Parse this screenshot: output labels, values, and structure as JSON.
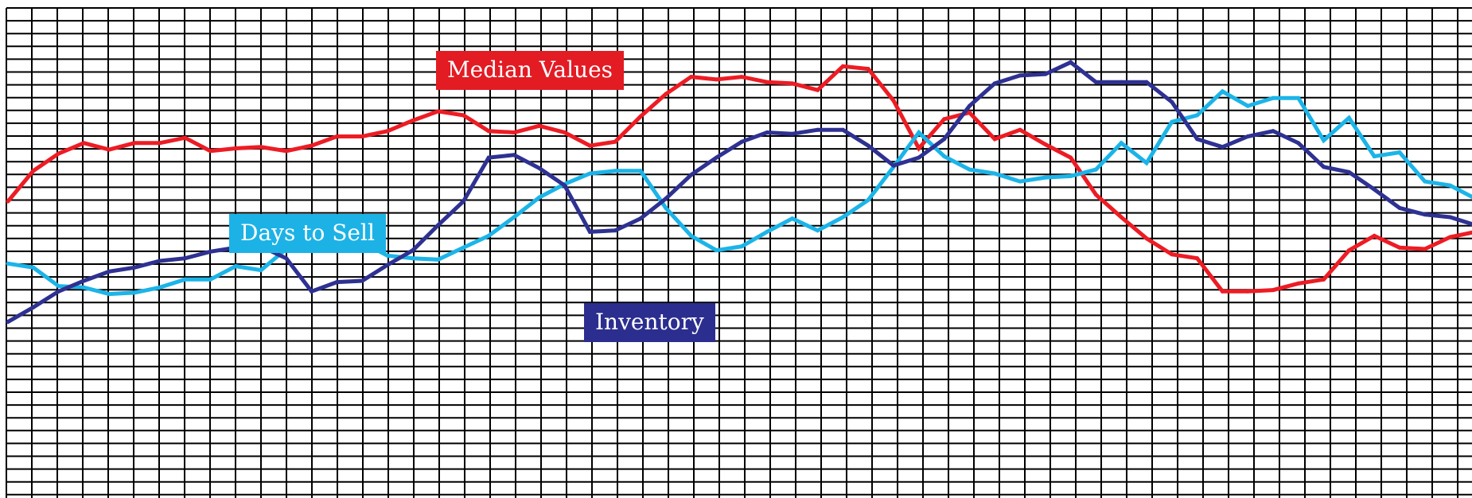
{
  "chart_data": {
    "type": "line",
    "title": "",
    "xlabel": "",
    "ylabel": "",
    "grid": true,
    "ylim": [
      0,
      37
    ],
    "x": [
      1,
      2,
      3,
      4,
      5,
      6,
      7,
      8,
      9,
      10,
      11,
      12,
      13,
      14,
      15,
      16,
      17,
      18,
      19,
      20,
      21,
      22,
      23,
      24,
      25,
      26,
      27,
      28,
      29,
      30,
      31,
      32,
      33,
      34,
      35,
      36,
      37,
      38,
      39,
      40,
      41,
      42,
      43,
      44,
      45,
      46,
      47,
      48,
      49,
      50,
      51,
      52,
      53,
      54,
      55,
      56,
      57,
      58,
      59,
      60
    ],
    "series": [
      {
        "name": "Median Values",
        "color": "#ed1c24",
        "label_background": "#e31b23",
        "values": [
          22.4,
          24.7,
          26,
          26.8,
          26.3,
          26.8,
          26.8,
          27.2,
          26.2,
          26.4,
          26.5,
          26.2,
          26.6,
          27.3,
          27.3,
          27.7,
          28.5,
          29.2,
          28.9,
          27.7,
          27.6,
          28.1,
          27.6,
          26.6,
          26.9,
          28.8,
          30.5,
          31.8,
          31.6,
          31.8,
          31.4,
          31.3,
          30.8,
          32.6,
          32.4,
          30,
          26.4,
          28.6,
          29.1,
          27.1,
          27.8,
          26.7,
          25.7,
          22.9,
          21.2,
          19.6,
          18.4,
          18.1,
          15.6,
          15.6,
          15.7,
          16.2,
          16.5,
          18.7,
          19.8,
          18.9,
          18.8,
          19.7,
          20.1,
          19.5
        ]
      },
      {
        "name": "Days to Sell",
        "color": "#1cb4e8",
        "label_background": "#1cb2e6",
        "values": [
          17.7,
          17.4,
          16,
          15.9,
          15.4,
          15.5,
          15.9,
          16.5,
          16.5,
          17.5,
          17.2,
          18.8,
          20.4,
          20,
          19.3,
          18.3,
          18.1,
          18,
          18.9,
          19.8,
          21.2,
          22.7,
          23.7,
          24.5,
          24.7,
          24.7,
          21.9,
          19.8,
          18.7,
          19,
          20.1,
          21.1,
          20.2,
          21.2,
          22.5,
          25,
          27.6,
          25.8,
          24.8,
          24.5,
          23.9,
          24.2,
          24.3,
          24.8,
          26.8,
          25.3,
          28.4,
          28.9,
          30.7,
          29.6,
          30.2,
          30.2,
          27,
          28.7,
          25.8,
          26.1,
          23.9,
          23.6,
          22.6,
          22.2
        ]
      },
      {
        "name": "Inventory",
        "color": "#2e3192",
        "label_background": "#2b2e8f",
        "values": [
          13.3,
          14.4,
          15.6,
          16.4,
          17.1,
          17.4,
          17.9,
          18.1,
          18.6,
          18.9,
          19,
          18.1,
          15.6,
          16.3,
          16.4,
          17.6,
          18.7,
          20.6,
          22.4,
          25.7,
          25.9,
          24.9,
          23.6,
          20.1,
          20.2,
          21.1,
          22.6,
          24.4,
          25.7,
          26.9,
          27.6,
          27.5,
          27.8,
          27.8,
          26.6,
          25.1,
          25.7,
          27.1,
          29.6,
          31.3,
          31.9,
          32,
          32.9,
          31.4,
          31.4,
          31.4,
          29.9,
          27.1,
          26.5,
          27.3,
          27.7,
          26.8,
          25,
          24.6,
          23.3,
          21.9,
          21.4,
          21.2,
          20.6,
          19
        ]
      }
    ]
  }
}
